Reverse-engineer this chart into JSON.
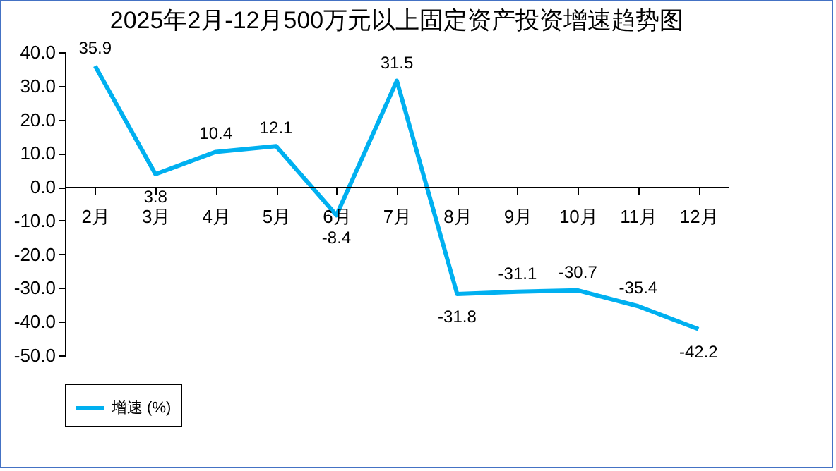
{
  "chart_data": {
    "type": "line",
    "title": "2025年2月-12月500万元以上固定资产投资增速趋势图",
    "categories": [
      "2月",
      "3月",
      "4月",
      "5月",
      "6月",
      "7月",
      "8月",
      "9月",
      "10月",
      "11月",
      "12月"
    ],
    "series": [
      {
        "name": "增速 (%)",
        "color": "#00b0f0",
        "values": [
          35.9,
          3.8,
          10.4,
          12.1,
          -8.4,
          31.5,
          -31.8,
          -31.1,
          -30.7,
          -35.4,
          -42.2
        ]
      }
    ],
    "ylim": [
      -50,
      40
    ],
    "yticks": [
      {
        "value": -50,
        "label": "-50.0"
      },
      {
        "value": -40,
        "label": "-40.0"
      },
      {
        "value": -30,
        "label": "-30.0"
      },
      {
        "value": -20,
        "label": "-20.0"
      },
      {
        "value": -10,
        "label": "-10.0"
      },
      {
        "value": 0,
        "label": "0.0"
      },
      {
        "value": 10,
        "label": "10.0"
      },
      {
        "value": 20,
        "label": "20.0"
      },
      {
        "value": 30,
        "label": "30.0"
      },
      {
        "value": 40,
        "label": "40.0"
      }
    ],
    "data_labels": true,
    "grid": false,
    "legend": "bottom",
    "marker": "none",
    "line_style": "solid"
  }
}
